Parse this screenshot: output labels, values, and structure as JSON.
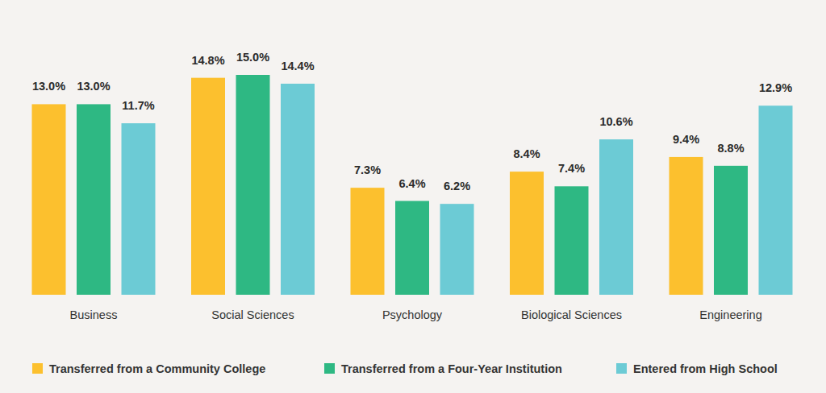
{
  "chart_data": {
    "type": "bar",
    "categories": [
      "Business",
      "Social Sciences",
      "Psychology",
      "Biological Sciences",
      "Engineering"
    ],
    "series": [
      {
        "name": "Transferred from a Community College",
        "color": "#fcc02e",
        "values": [
          13.0,
          14.8,
          7.3,
          8.4,
          9.4
        ],
        "value_labels": [
          "13.0%",
          "14.8%",
          "7.3%",
          "8.4%",
          "9.4%"
        ]
      },
      {
        "name": "Transferred from a Four-Year Institution",
        "color": "#2eb883",
        "values": [
          13.0,
          15.0,
          6.4,
          7.4,
          8.8
        ],
        "value_labels": [
          "13.0%",
          "15.0%",
          "6.4%",
          "7.4%",
          "8.8%"
        ]
      },
      {
        "name": "Entered from High School",
        "color": "#6ccbd5",
        "values": [
          11.7,
          14.4,
          6.2,
          10.6,
          12.9
        ],
        "value_labels": [
          "11.7%",
          "14.4%",
          "6.2%",
          "10.6%",
          "12.9%"
        ]
      }
    ],
    "ylim": [
      0,
      15
    ],
    "data_labels": true,
    "tick_labels": "x",
    "legend": "bottom"
  }
}
